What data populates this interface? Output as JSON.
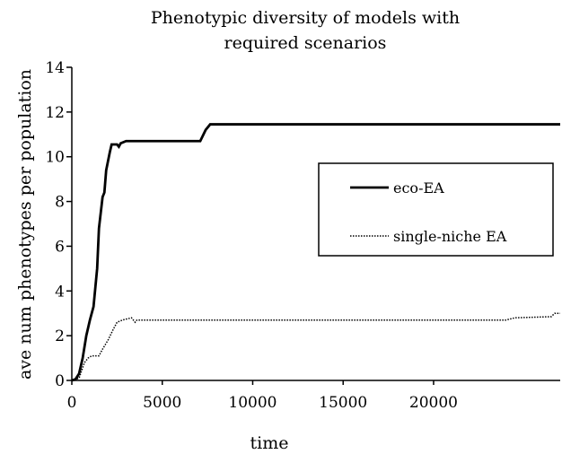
{
  "chart_data": {
    "type": "line",
    "title": "Phenotypic diversity of models with required scenarios",
    "x_label": "time",
    "y_label": "ave num phenotypes per population",
    "xlim": [
      0,
      27000
    ],
    "xticks": [
      0,
      5000,
      10000,
      15000,
      20000
    ],
    "ylim": [
      0,
      14
    ],
    "yticks": [
      0,
      2,
      4,
      6,
      8,
      10,
      12,
      14
    ],
    "legend": "right",
    "series": [
      {
        "name": "eco-EA",
        "color": "#000000",
        "style": "solid",
        "x": [
          0,
          200,
          400,
          600,
          800,
          1000,
          1200,
          1400,
          1500,
          1700,
          1800,
          1900,
          2100,
          2200,
          2500,
          2600,
          2700,
          3000,
          7100,
          7400,
          7650,
          27000
        ],
        "values": [
          0,
          0.05,
          0.3,
          1,
          2,
          2.7,
          3.3,
          5,
          6.8,
          8.2,
          8.4,
          9.4,
          10.2,
          10.55,
          10.55,
          10.45,
          10.6,
          10.7,
          10.7,
          11.2,
          11.45,
          11.45
        ]
      },
      {
        "name": "single-niche EA",
        "color": "#000000",
        "style": "dotted",
        "x": [
          0,
          400,
          700,
          900,
          1100,
          1500,
          1700,
          2000,
          2300,
          2500,
          2800,
          3300,
          3500,
          3600,
          24000,
          24500,
          26500,
          26700,
          27000
        ],
        "values": [
          0,
          0.1,
          0.8,
          1,
          1.1,
          1.1,
          1.4,
          1.8,
          2.3,
          2.6,
          2.7,
          2.8,
          2.6,
          2.7,
          2.7,
          2.8,
          2.85,
          3,
          3
        ]
      }
    ]
  }
}
